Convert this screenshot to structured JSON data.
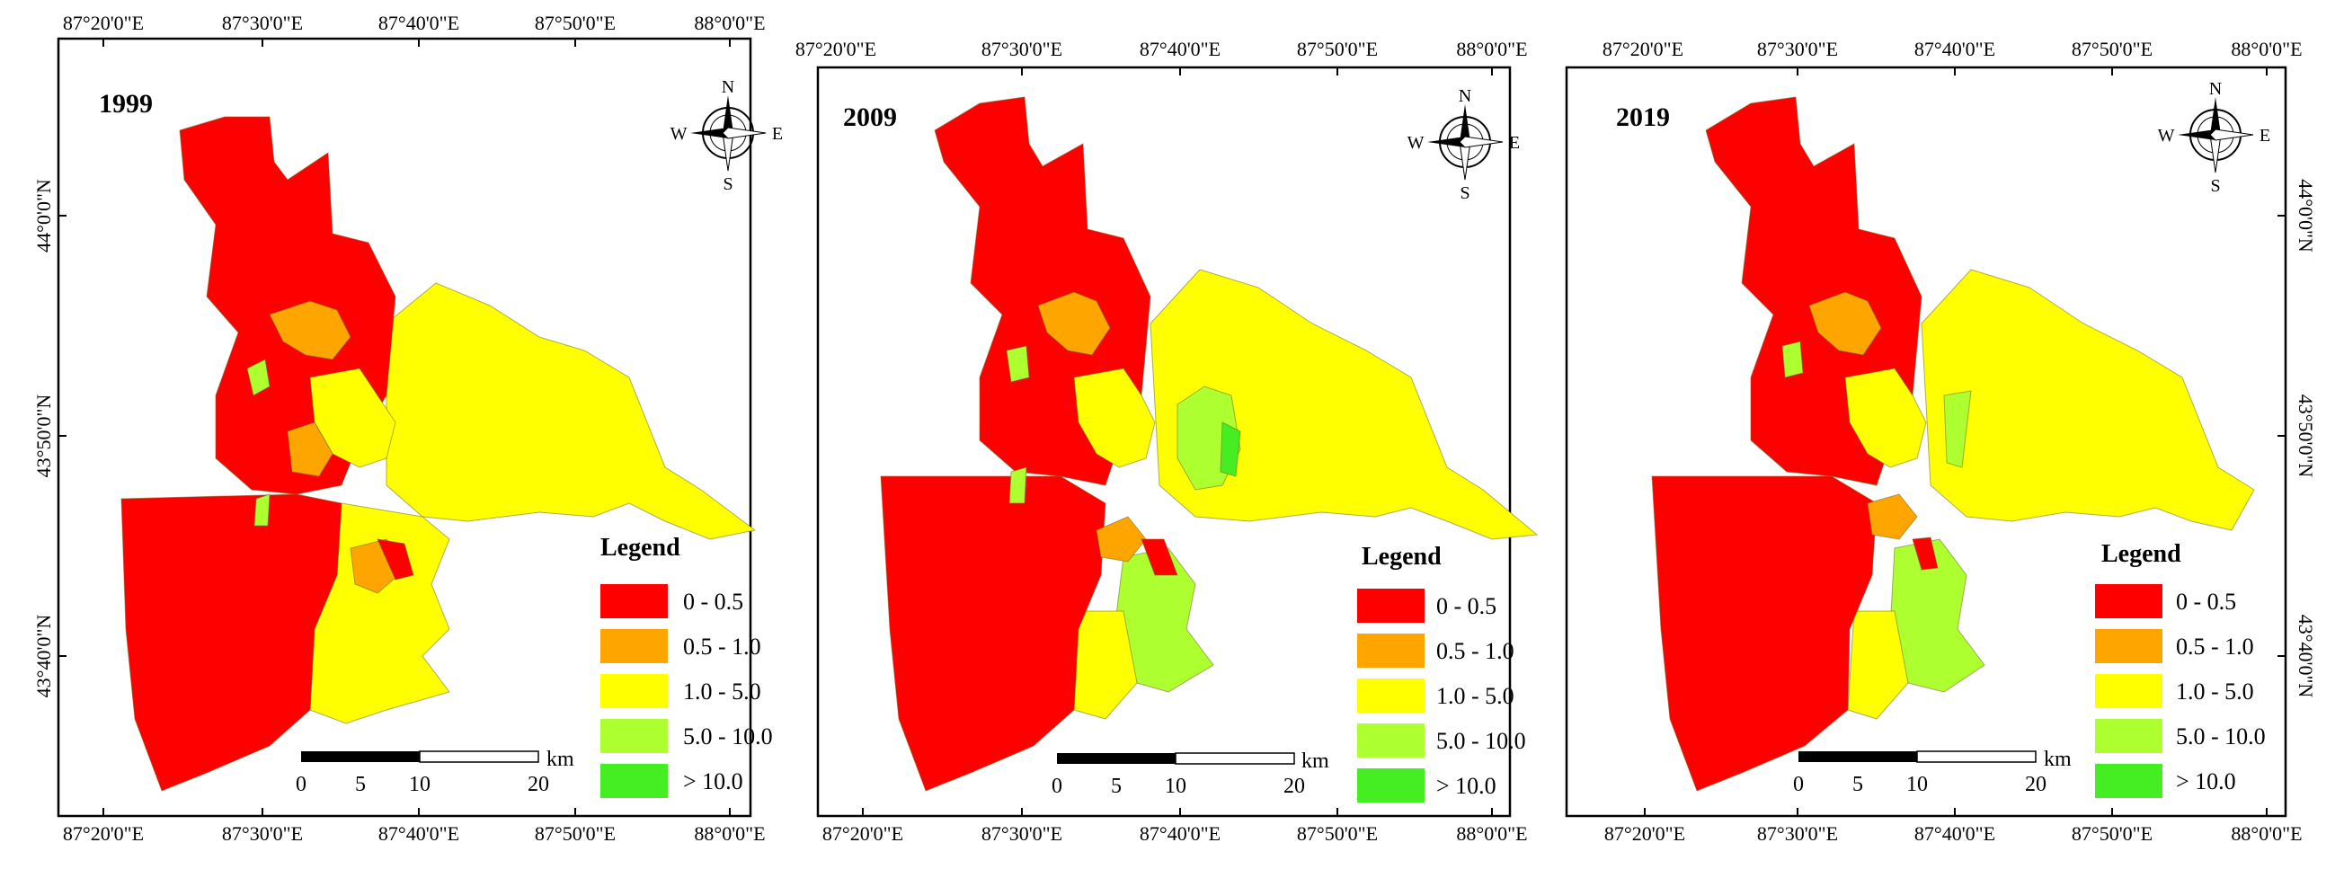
{
  "colors": {
    "c1": "#ff0000",
    "c2": "#ffa500",
    "c3": "#ffff00",
    "c4": "#adff2f",
    "c5": "#44ee22"
  },
  "legend": {
    "title": "Legend",
    "classes": [
      {
        "label": "0 - 0.5",
        "color": "#ff0000"
      },
      {
        "label": "0.5 - 1.0",
        "color": "#ffa500"
      },
      {
        "label": "1.0 - 5.0",
        "color": "#ffff00"
      },
      {
        "label": "5.0 - 10.0",
        "color": "#adff2f"
      },
      {
        "label": "> 10.0",
        "color": "#44ee22"
      }
    ]
  },
  "scalebar": {
    "ticks": [
      "0",
      "5",
      "10",
      "20"
    ],
    "unit": "km"
  },
  "compass": {
    "n": "N",
    "s": "S",
    "e": "E",
    "w": "W"
  },
  "lon_labels": [
    "87°20'0\"E",
    "87°30'0\"E",
    "87°40'0\"E",
    "87°50'0\"E",
    "88°0'0\"E"
  ],
  "lat_labels": [
    "44°0'0\"N",
    "43°50'0\"N",
    "43°40'0\"N"
  ],
  "panels": [
    {
      "year": "1999"
    },
    {
      "year": "2009"
    },
    {
      "year": "2019"
    }
  ]
}
